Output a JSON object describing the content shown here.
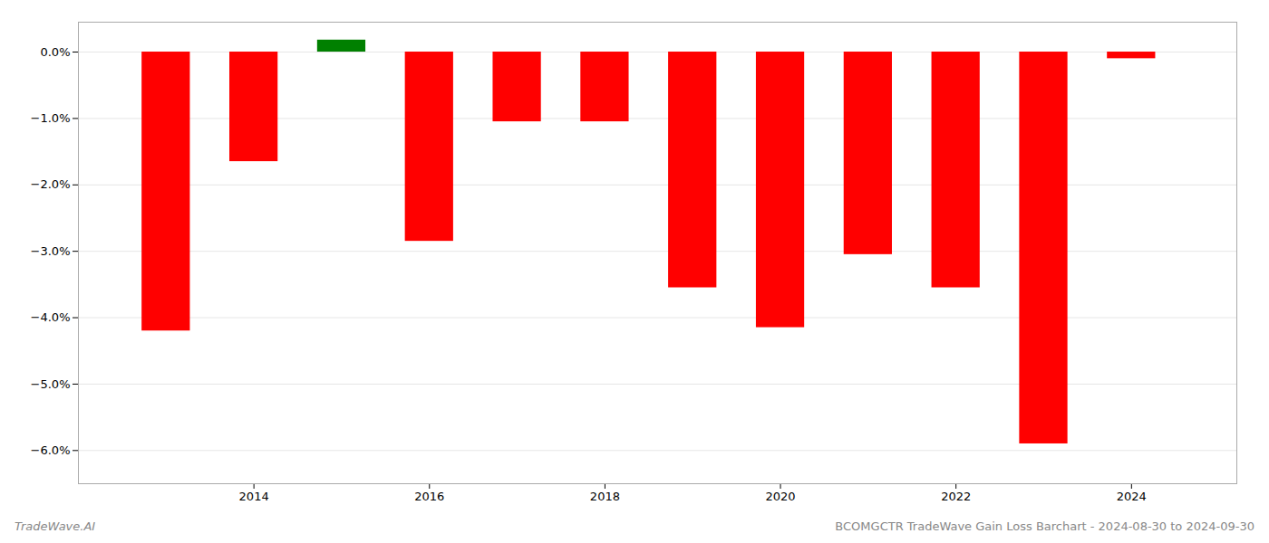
{
  "chart_data": {
    "type": "bar",
    "x": [
      2013,
      2014,
      2015,
      2016,
      2017,
      2018,
      2019,
      2020,
      2021,
      2022,
      2023,
      2024
    ],
    "values": [
      -4.2,
      -1.65,
      0.18,
      -2.85,
      -1.05,
      -1.05,
      -3.55,
      -4.15,
      -3.05,
      -3.55,
      -5.9,
      -0.1
    ],
    "colors": [
      "#ff0000",
      "#ff0000",
      "#008000",
      "#ff0000",
      "#ff0000",
      "#ff0000",
      "#ff0000",
      "#ff0000",
      "#ff0000",
      "#ff0000",
      "#ff0000",
      "#ff0000"
    ],
    "xlim": [
      2012.0,
      2025.2
    ],
    "xticks": [
      2014,
      2016,
      2018,
      2020,
      2022,
      2024
    ],
    "ylim": [
      -6.5,
      0.45
    ],
    "yticks": [
      {
        "value": 0.0,
        "label": "0.0%"
      },
      {
        "value": -1.0,
        "label": "−1.0%"
      },
      {
        "value": -2.0,
        "label": "−2.0%"
      },
      {
        "value": -3.0,
        "label": "−3.0%"
      },
      {
        "value": -4.0,
        "label": "−4.0%"
      },
      {
        "value": -5.0,
        "label": "−5.0%"
      },
      {
        "value": -6.0,
        "label": "−6.0%"
      }
    ],
    "grid": true,
    "annotations": [
      "TradeWave.AI",
      "BCOMGCTR TradeWave Gain Loss Barchart - 2024-08-30 to 2024-09-30"
    ]
  }
}
